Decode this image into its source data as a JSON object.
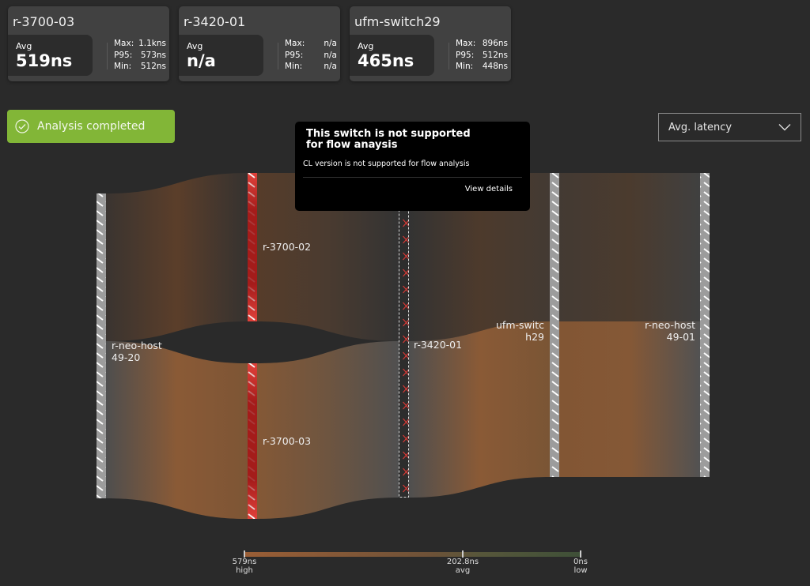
{
  "cards": [
    {
      "title": "r-3700-03",
      "avg_label": "Avg",
      "avg": "519ns",
      "max_label": "Max:",
      "max": "1.1kns",
      "p95_label": "P95:",
      "p95": "573ns",
      "min_label": "Min:",
      "min": "512ns"
    },
    {
      "title": "r-3420-01",
      "avg_label": "Avg",
      "avg": "n/a",
      "max_label": "Max:",
      "max": "n/a",
      "p95_label": "P95:",
      "p95": "n/a",
      "min_label": "Min:",
      "min": "n/a"
    },
    {
      "title": "ufm-switch29",
      "avg_label": "Avg",
      "avg": "465ns",
      "max_label": "Max:",
      "max": "896ns",
      "p95_label": "P95:",
      "p95": "512ns",
      "min_label": "Min:",
      "min": "448ns"
    }
  ],
  "status": {
    "label": "Analysis completed",
    "icon": "check-circle-icon",
    "color": "#82b637"
  },
  "metric_select": {
    "value": "Avg. latency",
    "icon": "chevron-down-icon"
  },
  "tooltip": {
    "title": "This switch is not supported for flow anaysis",
    "description": "CL version is not supported for flow analysis",
    "link": "View details"
  },
  "nodes": {
    "src": [
      "r-neo-host",
      "49-20"
    ],
    "a": "r-3700-02",
    "b": "r-3700-03",
    "c": "r-3420-01",
    "d": [
      "ufm-switc",
      "h29"
    ],
    "dst": [
      "r-neo-host",
      "49-01"
    ]
  },
  "colors": {
    "high": "#9a5e36",
    "low": "#3e5038",
    "unsupported": "#e53935"
  },
  "legend": {
    "high_value": "579ns",
    "high_label": "high",
    "avg_value": "202.8ns",
    "avg_label": "avg",
    "low_value": "0ns",
    "low_label": "low"
  }
}
